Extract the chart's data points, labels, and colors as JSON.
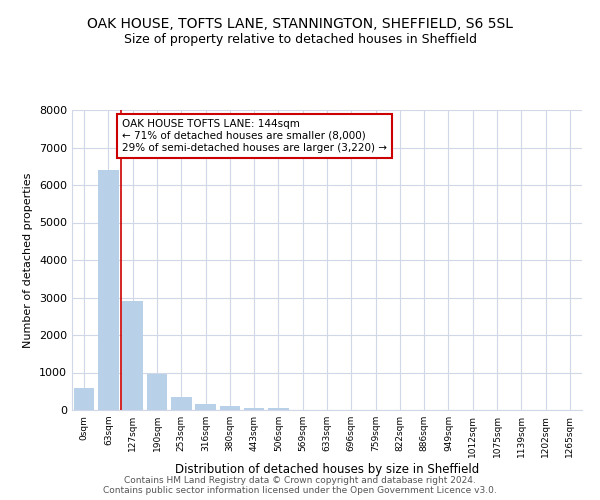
{
  "title": "OAK HOUSE, TOFTS LANE, STANNINGTON, SHEFFIELD, S6 5SL",
  "subtitle": "Size of property relative to detached houses in Sheffield",
  "xlabel": "Distribution of detached houses by size in Sheffield",
  "ylabel": "Number of detached properties",
  "categories": [
    "0sqm",
    "63sqm",
    "127sqm",
    "190sqm",
    "253sqm",
    "316sqm",
    "380sqm",
    "443sqm",
    "506sqm",
    "569sqm",
    "633sqm",
    "696sqm",
    "759sqm",
    "822sqm",
    "886sqm",
    "949sqm",
    "1012sqm",
    "1075sqm",
    "1139sqm",
    "1202sqm",
    "1265sqm"
  ],
  "values": [
    600,
    6400,
    2920,
    970,
    350,
    155,
    95,
    65,
    50,
    0,
    0,
    0,
    0,
    0,
    0,
    0,
    0,
    0,
    0,
    0,
    0
  ],
  "bar_color": "#b8d0e8",
  "vline_x": 1.5,
  "vline_color": "#cc0000",
  "annotation_line1": "OAK HOUSE TOFTS LANE: 144sqm",
  "annotation_line2": "← 71% of detached houses are smaller (8,000)",
  "annotation_line3": "29% of semi-detached houses are larger (3,220) →",
  "annotation_box_color": "#cc0000",
  "ylim": [
    0,
    8000
  ],
  "yticks": [
    0,
    1000,
    2000,
    3000,
    4000,
    5000,
    6000,
    7000,
    8000
  ],
  "footer_line1": "Contains HM Land Registry data © Crown copyright and database right 2024.",
  "footer_line2": "Contains public sector information licensed under the Open Government Licence v3.0.",
  "title_fontsize": 10,
  "subtitle_fontsize": 9,
  "bg_color": "#ffffff",
  "grid_color": "#d0d8e8"
}
